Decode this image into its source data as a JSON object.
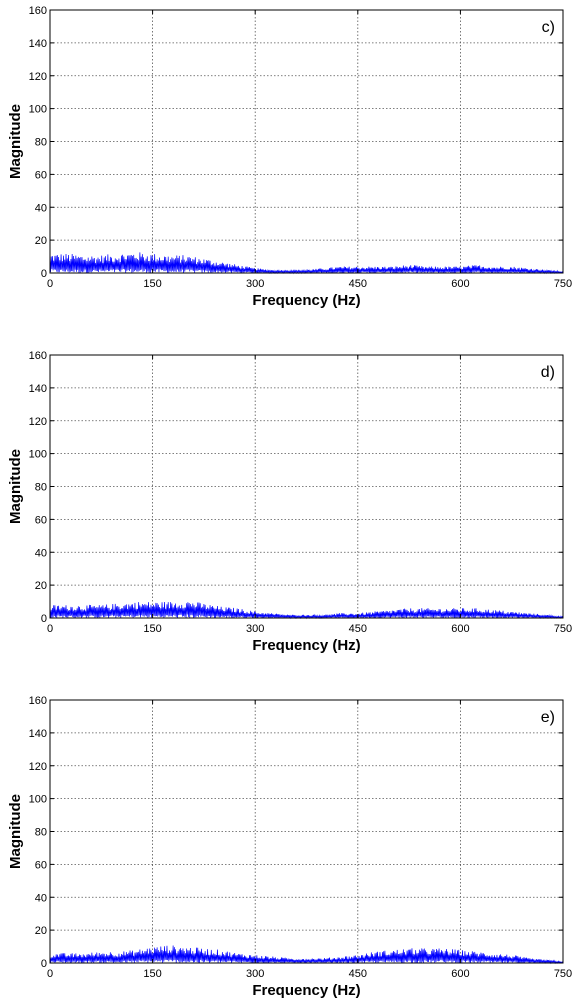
{
  "chart_data": [
    {
      "type": "line",
      "panel_label": "c)",
      "xlabel": "Frequency (Hz)",
      "ylabel": "Magnitude",
      "xlim": [
        0,
        750
      ],
      "ylim": [
        0,
        160
      ],
      "xticks": [
        0,
        150,
        300,
        450,
        600,
        750
      ],
      "yticks": [
        0,
        20,
        40,
        60,
        80,
        100,
        120,
        140,
        160
      ],
      "grid": true,
      "line_color": "#0000ff",
      "series": [
        {
          "x": [
            0,
            25,
            50,
            75,
            100,
            125,
            150,
            175,
            200,
            225,
            250,
            275,
            300,
            325,
            350,
            375,
            400,
            425,
            450,
            475,
            500,
            525,
            550,
            575,
            600,
            625,
            650,
            675,
            700,
            725,
            750
          ],
          "y": [
            12,
            12,
            11,
            11,
            12,
            13,
            12,
            11,
            11,
            9,
            7,
            5,
            3,
            2,
            2,
            2,
            3,
            4,
            4,
            4,
            4,
            5,
            4,
            4,
            4,
            5,
            4,
            4,
            3,
            2,
            1
          ]
        }
      ]
    },
    {
      "type": "line",
      "panel_label": "d)",
      "xlabel": "Frequency (Hz)",
      "ylabel": "Magnitude",
      "xlim": [
        0,
        750
      ],
      "ylim": [
        0,
        160
      ],
      "xticks": [
        0,
        150,
        300,
        450,
        600,
        750
      ],
      "yticks": [
        0,
        20,
        40,
        60,
        80,
        100,
        120,
        140,
        160
      ],
      "grid": true,
      "line_color": "#0000ff",
      "series": [
        {
          "x": [
            0,
            25,
            50,
            75,
            100,
            125,
            150,
            175,
            200,
            225,
            250,
            275,
            300,
            325,
            350,
            375,
            400,
            425,
            450,
            475,
            500,
            525,
            550,
            575,
            600,
            625,
            650,
            675,
            700,
            725,
            750
          ],
          "y": [
            8,
            8,
            8,
            8,
            9,
            10,
            10,
            10,
            11,
            9,
            7,
            6,
            4,
            3,
            2,
            2,
            2,
            3,
            3,
            4,
            5,
            6,
            6,
            6,
            6,
            6,
            5,
            4,
            3,
            2,
            1
          ]
        }
      ]
    },
    {
      "type": "line",
      "panel_label": "e)",
      "xlabel": "Frequency (Hz)",
      "ylabel": "Magnitude",
      "xlim": [
        0,
        750
      ],
      "ylim": [
        0,
        160
      ],
      "xticks": [
        0,
        150,
        300,
        450,
        600,
        750
      ],
      "yticks": [
        0,
        20,
        40,
        60,
        80,
        100,
        120,
        140,
        160
      ],
      "grid": true,
      "line_color": "#0000ff",
      "series": [
        {
          "x": [
            0,
            25,
            50,
            75,
            100,
            125,
            150,
            175,
            200,
            225,
            250,
            275,
            300,
            325,
            350,
            375,
            400,
            425,
            450,
            475,
            500,
            525,
            550,
            575,
            600,
            625,
            650,
            675,
            700,
            725,
            750
          ],
          "y": [
            6,
            6,
            6,
            7,
            7,
            8,
            10,
            11,
            10,
            9,
            8,
            6,
            5,
            4,
            3,
            3,
            3,
            4,
            5,
            7,
            8,
            9,
            9,
            9,
            8,
            7,
            6,
            5,
            3,
            2,
            1
          ]
        }
      ]
    }
  ]
}
